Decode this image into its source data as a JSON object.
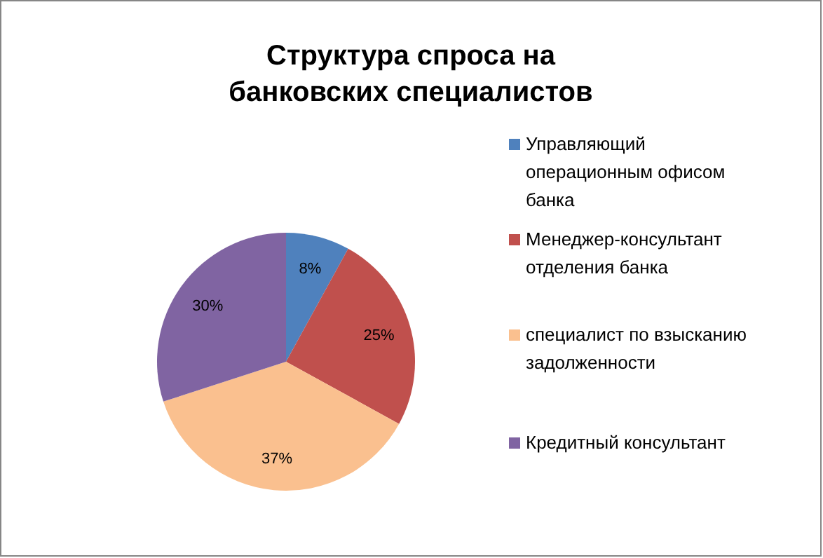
{
  "chart_data": {
    "type": "pie",
    "title": "Структура спроса на\nбанковских специалистов",
    "categories": [
      "Управляющий операционным офисом банка",
      "Менеджер-консультант отделения банка",
      "специалист по взысканию задолженности",
      "Кредитный консультант"
    ],
    "values": [
      8,
      25,
      37,
      30
    ],
    "colors": [
      "#4f81bd",
      "#c0504d",
      "#fac08f",
      "#8064a2"
    ],
    "value_labels": [
      "8%",
      "25%",
      "37%",
      "30%"
    ],
    "legend": "right"
  }
}
